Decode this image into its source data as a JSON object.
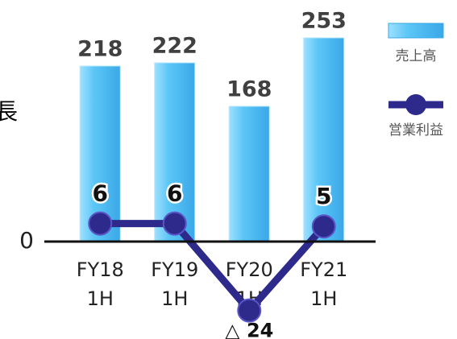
{
  "chart_data": {
    "type": "bar",
    "annotation": "長",
    "categories": [
      "FY18 1H",
      "FY19 1H",
      "FY20 1H",
      "FY21 1H"
    ],
    "series": [
      {
        "name": "売上高",
        "color": "#5cc6f6",
        "values": [
          218,
          222,
          168,
          253
        ]
      },
      {
        "name": "営業利益",
        "type": "line",
        "axis": "y2",
        "color": "#2d2a8c",
        "values": [
          6,
          6,
          -24,
          5
        ],
        "value_labels": [
          "6",
          "6",
          "△ 24",
          "5"
        ]
      }
    ],
    "ylim": [
      -100,
      260
    ],
    "yticks": [
      0
    ],
    "y2lim": [
      -28,
      72
    ],
    "legend": "upper right"
  }
}
